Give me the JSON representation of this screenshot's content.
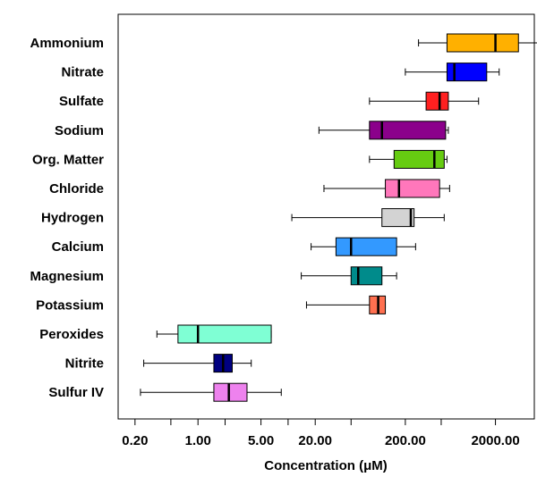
{
  "chart_data": {
    "type": "boxplot",
    "orientation": "horizontal",
    "x_scale": "log",
    "xlabel": "Concentration (μM)",
    "xlim": [
      0.13,
      5400
    ],
    "x_ticks": [
      {
        "value": 0.2,
        "label": "0.20"
      },
      {
        "value": 0.5,
        "label": ""
      },
      {
        "value": 1,
        "label": "1.00"
      },
      {
        "value": 2,
        "label": ""
      },
      {
        "value": 5,
        "label": "5.00"
      },
      {
        "value": 10,
        "label": ""
      },
      {
        "value": 20,
        "label": "20.00"
      },
      {
        "value": 50,
        "label": ""
      },
      {
        "value": 200,
        "label": "200.00"
      },
      {
        "value": 500,
        "label": ""
      },
      {
        "value": 2000,
        "label": "2000.00"
      }
    ],
    "grid": false,
    "categories": [
      "Ammonium",
      "Nitrate",
      "Sulfate",
      "Sodium",
      "Org. Matter",
      "Chloride",
      "Hydrogen",
      "Calcium",
      "Magnesium",
      "Potassium",
      "Peroxides",
      "Nitrite",
      "Sulfur IV"
    ],
    "boxes": [
      {
        "name": "Ammonium",
        "whisker_low": 280,
        "q1": 580,
        "median": 2000,
        "q3": 3600,
        "whisker_high": 8800,
        "color": "#FFB000"
      },
      {
        "name": "Nitrate",
        "whisker_low": 200,
        "q1": 580,
        "median": 700,
        "q3": 1600,
        "whisker_high": 2200,
        "color": "#0000FF"
      },
      {
        "name": "Sulfate",
        "whisker_low": 80,
        "q1": 340,
        "median": 480,
        "q3": 600,
        "whisker_high": 1300,
        "color": "#FF2020"
      },
      {
        "name": "Sodium",
        "whisker_low": 22,
        "q1": 80,
        "median": 110,
        "q3": 560,
        "whisker_high": 600,
        "color": "#8B008B"
      },
      {
        "name": "Org. Matter",
        "whisker_low": 80,
        "q1": 150,
        "median": 420,
        "q3": 540,
        "whisker_high": 580,
        "color": "#66CC11"
      },
      {
        "name": "Chloride",
        "whisker_low": 25,
        "q1": 120,
        "median": 170,
        "q3": 480,
        "whisker_high": 620,
        "color": "#FF77BB"
      },
      {
        "name": "Hydrogen",
        "whisker_low": 11,
        "q1": 110,
        "median": 230,
        "q3": 250,
        "whisker_high": 540,
        "color": "#D3D3D3"
      },
      {
        "name": "Calcium",
        "whisker_low": 18,
        "q1": 34,
        "median": 50,
        "q3": 160,
        "whisker_high": 260,
        "color": "#3399FF"
      },
      {
        "name": "Magnesium",
        "whisker_low": 14,
        "q1": 50,
        "median": 60,
        "q3": 110,
        "whisker_high": 160,
        "color": "#008B8B"
      },
      {
        "name": "Potassium",
        "whisker_low": 16,
        "q1": 80,
        "median": 100,
        "q3": 120,
        "whisker_high": 120,
        "color": "#FF7050"
      },
      {
        "name": "Peroxides",
        "whisker_low": 0.35,
        "q1": 0.6,
        "median": 1.0,
        "q3": 6.5,
        "whisker_high": 6.5,
        "color": "#7FFFD4"
      },
      {
        "name": "Nitrite",
        "whisker_low": 0.25,
        "q1": 1.5,
        "median": 1.9,
        "q3": 2.4,
        "whisker_high": 3.9,
        "color": "#000080"
      },
      {
        "name": "Sulfur IV",
        "whisker_low": 0.23,
        "q1": 1.5,
        "median": 2.2,
        "q3": 3.5,
        "whisker_high": 8.4,
        "color": "#EE82EE"
      }
    ]
  }
}
